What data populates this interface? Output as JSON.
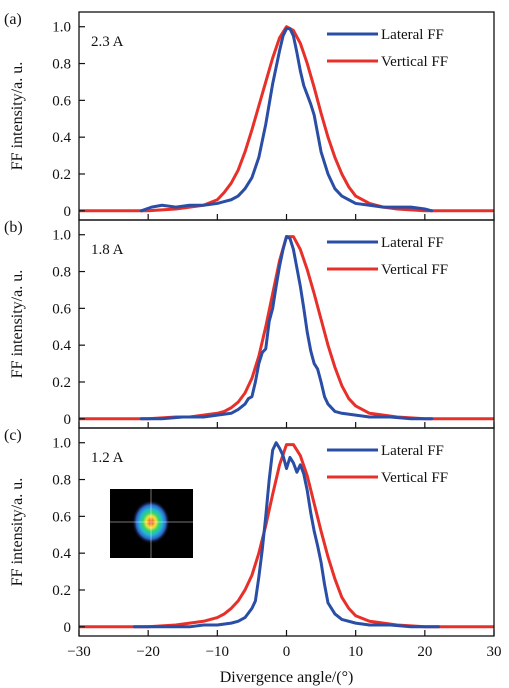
{
  "colors": {
    "lateral": "#2a4ea6",
    "vertical": "#e8302a",
    "axis": "#111111"
  },
  "xaxis": {
    "label": "Divergence angle/(°)",
    "range": [
      -30,
      30
    ],
    "ticks": [
      -30,
      -20,
      -10,
      0,
      10,
      20,
      30
    ],
    "tick_labels": [
      "−30",
      "−20",
      "−10",
      "0",
      "10",
      "20",
      "30"
    ]
  },
  "inset": {
    "icon": "far-field-spot-heatmap",
    "colormap": [
      "#3a0f6b",
      "#2f62c9",
      "#1fb5d6",
      "#36d46c",
      "#f2e33a",
      "#f08a26",
      "#e2322a"
    ]
  },
  "chart_data": [
    {
      "type": "line",
      "panel_label": "(a)",
      "current_label": "2.3 A",
      "ylabel": "FF intensity/a. u.",
      "xlim": [
        -30,
        30
      ],
      "ylim": [
        -0.05,
        1.08
      ],
      "yticks": [
        0,
        0.2,
        0.4,
        0.6,
        0.8,
        1.0
      ],
      "ytick_labels": [
        "0",
        "0.2",
        "0.4",
        "0.6",
        "0.8",
        "1.0"
      ],
      "legend_position": "top-right",
      "series": [
        {
          "name": "Lateral FF",
          "color": "#2a4ea6",
          "x": [
            -21,
            -19.5,
            -18,
            -16,
            -14,
            -12,
            -10,
            -9,
            -8,
            -7,
            -6,
            -5,
            -4,
            -3,
            -2,
            -1,
            -0.5,
            0,
            0.5,
            1,
            1.5,
            2,
            2.5,
            3,
            3.5,
            4,
            4.5,
            5,
            6,
            7,
            8,
            9,
            10,
            12,
            14,
            16,
            18,
            20,
            21
          ],
          "y": [
            0.0,
            0.02,
            0.03,
            0.02,
            0.03,
            0.03,
            0.04,
            0.05,
            0.06,
            0.08,
            0.12,
            0.18,
            0.29,
            0.47,
            0.69,
            0.87,
            0.95,
            0.99,
            0.99,
            0.95,
            0.86,
            0.76,
            0.68,
            0.63,
            0.58,
            0.52,
            0.42,
            0.32,
            0.2,
            0.12,
            0.08,
            0.06,
            0.04,
            0.03,
            0.02,
            0.02,
            0.02,
            0.01,
            0.0
          ]
        },
        {
          "name": "Vertical FF",
          "color": "#e8302a",
          "x": [
            -31,
            -24,
            -20,
            -16,
            -14,
            -12,
            -10,
            -9,
            -8,
            -7,
            -6,
            -5,
            -4,
            -3,
            -2,
            -1,
            0,
            1,
            2,
            3,
            4,
            5,
            6,
            7,
            8,
            9,
            10,
            12,
            14,
            16,
            20,
            24,
            31
          ],
          "y": [
            0.0,
            0.0,
            0.0,
            0.01,
            0.02,
            0.03,
            0.06,
            0.1,
            0.15,
            0.22,
            0.32,
            0.44,
            0.57,
            0.7,
            0.83,
            0.94,
            1.0,
            0.98,
            0.91,
            0.8,
            0.67,
            0.53,
            0.4,
            0.29,
            0.2,
            0.13,
            0.08,
            0.04,
            0.02,
            0.01,
            0.0,
            0.0,
            0.0
          ]
        }
      ]
    },
    {
      "type": "line",
      "panel_label": "(b)",
      "current_label": "1.8 A",
      "ylabel": "FF intensity/a. u.",
      "xlim": [
        -30,
        30
      ],
      "ylim": [
        -0.05,
        1.08
      ],
      "yticks": [
        0,
        0.2,
        0.4,
        0.6,
        0.8,
        1.0
      ],
      "ytick_labels": [
        "0",
        "0.2",
        "0.4",
        "0.6",
        "0.8",
        "1.0"
      ],
      "legend_position": "top-right",
      "series": [
        {
          "name": "Lateral FF",
          "color": "#2a4ea6",
          "x": [
            -21,
            -18,
            -15,
            -12,
            -10,
            -8,
            -7,
            -6,
            -5.5,
            -5,
            -4.5,
            -4,
            -3.5,
            -3,
            -2.5,
            -2,
            -1.5,
            -1,
            -0.5,
            0,
            0.5,
            1,
            1.5,
            2,
            2.5,
            3,
            3.5,
            4,
            4.5,
            5,
            5.5,
            6,
            7,
            8,
            10,
            12,
            15,
            18,
            21
          ],
          "y": [
            0.0,
            0.0,
            0.01,
            0.01,
            0.02,
            0.03,
            0.05,
            0.08,
            0.11,
            0.12,
            0.2,
            0.3,
            0.36,
            0.38,
            0.53,
            0.6,
            0.72,
            0.83,
            0.92,
            0.99,
            0.98,
            0.92,
            0.82,
            0.72,
            0.6,
            0.47,
            0.37,
            0.3,
            0.27,
            0.2,
            0.12,
            0.08,
            0.04,
            0.03,
            0.02,
            0.01,
            0.01,
            0.0,
            0.0
          ]
        },
        {
          "name": "Vertical FF",
          "color": "#e8302a",
          "x": [
            -31,
            -24,
            -20,
            -16,
            -14,
            -12,
            -10,
            -9,
            -8,
            -7,
            -6,
            -5,
            -4,
            -3,
            -2,
            -1,
            0,
            1,
            2,
            3,
            4,
            5,
            6,
            7,
            8,
            9,
            10,
            12,
            14,
            16,
            20,
            24,
            31
          ],
          "y": [
            0.0,
            0.0,
            0.0,
            0.01,
            0.01,
            0.02,
            0.03,
            0.04,
            0.06,
            0.09,
            0.14,
            0.22,
            0.34,
            0.5,
            0.68,
            0.86,
            0.99,
            0.99,
            0.92,
            0.81,
            0.68,
            0.54,
            0.4,
            0.28,
            0.18,
            0.11,
            0.07,
            0.03,
            0.02,
            0.01,
            0.0,
            0.0,
            0.0
          ]
        }
      ]
    },
    {
      "type": "line",
      "panel_label": "(c)",
      "current_label": "1.2 A",
      "ylabel": "FF intensity/a. u.",
      "xlim": [
        -30,
        30
      ],
      "ylim": [
        -0.05,
        1.08
      ],
      "yticks": [
        0,
        0.2,
        0.4,
        0.6,
        0.8,
        1.0
      ],
      "ytick_labels": [
        "0",
        "0.2",
        "0.4",
        "0.6",
        "0.8",
        "1.0"
      ],
      "legend_position": "top-right",
      "series": [
        {
          "name": "Lateral FF",
          "color": "#2a4ea6",
          "x": [
            -22,
            -18,
            -14,
            -12,
            -10,
            -8,
            -7,
            -6,
            -5,
            -4.5,
            -4,
            -3.5,
            -3,
            -2.5,
            -2,
            -1.5,
            -1,
            -0.5,
            0,
            0.5,
            1,
            1.5,
            2,
            2.5,
            3,
            3.5,
            4,
            4.5,
            5,
            5.5,
            6,
            7,
            8,
            10,
            12,
            15,
            18,
            22
          ],
          "y": [
            0.0,
            0.0,
            0.0,
            0.01,
            0.01,
            0.02,
            0.03,
            0.05,
            0.1,
            0.14,
            0.27,
            0.42,
            0.6,
            0.8,
            0.96,
            1.0,
            0.97,
            0.93,
            0.86,
            0.92,
            0.89,
            0.84,
            0.88,
            0.83,
            0.74,
            0.62,
            0.52,
            0.44,
            0.35,
            0.23,
            0.13,
            0.07,
            0.04,
            0.02,
            0.01,
            0.01,
            0.0,
            0.0
          ]
        },
        {
          "name": "Vertical FF",
          "color": "#e8302a",
          "x": [
            -31,
            -24,
            -20,
            -16,
            -14,
            -12,
            -10,
            -9,
            -8,
            -7,
            -6,
            -5,
            -4,
            -3,
            -2,
            -1,
            0,
            1,
            2,
            3,
            4,
            5,
            6,
            7,
            8,
            9,
            10,
            12,
            14,
            16,
            20,
            24,
            31
          ],
          "y": [
            0.0,
            0.0,
            0.0,
            0.01,
            0.02,
            0.03,
            0.05,
            0.07,
            0.1,
            0.14,
            0.2,
            0.28,
            0.4,
            0.55,
            0.72,
            0.88,
            0.99,
            0.99,
            0.93,
            0.82,
            0.67,
            0.52,
            0.38,
            0.26,
            0.16,
            0.1,
            0.06,
            0.03,
            0.02,
            0.01,
            0.0,
            0.0,
            0.0
          ]
        }
      ]
    }
  ]
}
